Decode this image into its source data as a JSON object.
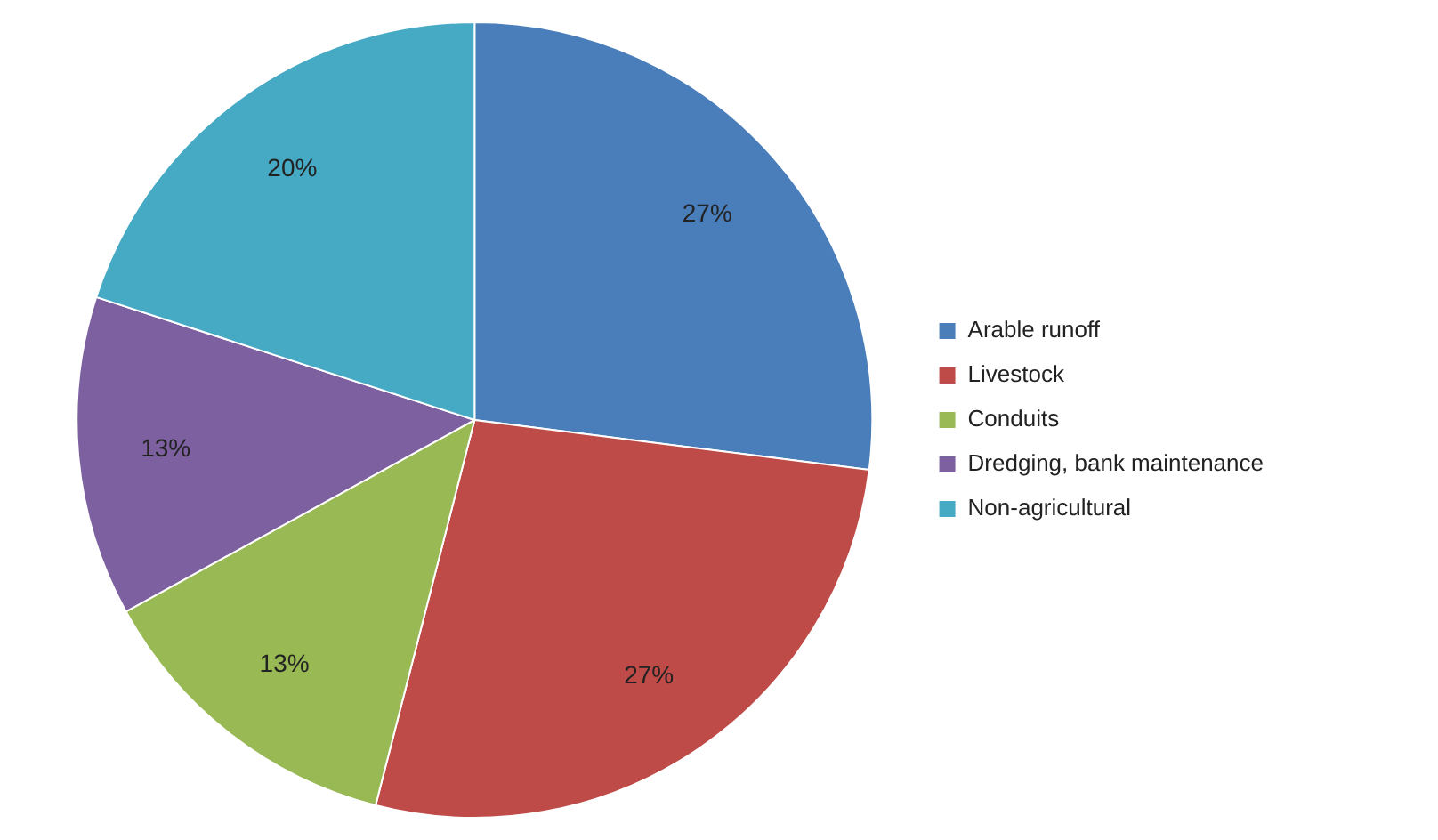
{
  "chart_data": {
    "type": "pie",
    "categories": [
      "Arable runoff",
      "Livestock",
      "Conduits",
      "Dredging, bank maintenance",
      "Non-agricultural"
    ],
    "values": [
      27,
      27,
      13,
      13,
      20
    ],
    "colors": [
      "#4a7ebb",
      "#be4b48",
      "#98b954",
      "#7d60a0",
      "#46aac5"
    ],
    "value_labels": [
      "27%",
      "27%",
      "13%",
      "13%",
      "20%"
    ],
    "legend": "right"
  }
}
